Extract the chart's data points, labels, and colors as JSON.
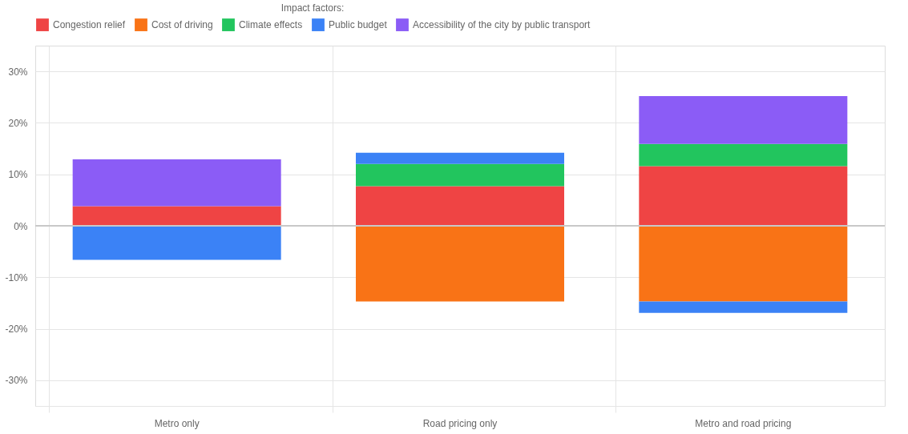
{
  "chart_data": {
    "type": "bar",
    "stacked": true,
    "legend_title": "Impact factors:",
    "legend": "top",
    "categories": [
      "Metro only",
      "Road pricing only",
      "Metro and road pricing"
    ],
    "series": [
      {
        "name": "Congestion relief",
        "color": "#ef4444",
        "values": [
          3.8,
          7.7,
          11.6
        ]
      },
      {
        "name": "Cost of driving",
        "color": "#f97316",
        "values": [
          null,
          -14.7,
          -14.7
        ]
      },
      {
        "name": "Climate effects",
        "color": "#22c55e",
        "values": [
          null,
          4.3,
          4.3
        ]
      },
      {
        "name": "Public budget",
        "color": "#3b82f6",
        "values": [
          -6.6,
          2.2,
          -2.2
        ]
      },
      {
        "name": "Accessibility of the city by public transport",
        "color": "#8b5cf6",
        "values": [
          9.1,
          null,
          9.3
        ]
      }
    ],
    "ylim": [
      -35,
      35
    ],
    "yticks": [
      {
        "value": -30,
        "label": "-30%"
      },
      {
        "value": -20,
        "label": "-20%"
      },
      {
        "value": -10,
        "label": "-10%"
      },
      {
        "value": 0,
        "label": "0%"
      },
      {
        "value": 10,
        "label": "10%"
      },
      {
        "value": 20,
        "label": "20%"
      },
      {
        "value": 30,
        "label": "30%"
      }
    ],
    "ref_lines": [
      {
        "axis": "y",
        "value": 0,
        "color": "#c8c8c8"
      }
    ],
    "grid": true
  }
}
